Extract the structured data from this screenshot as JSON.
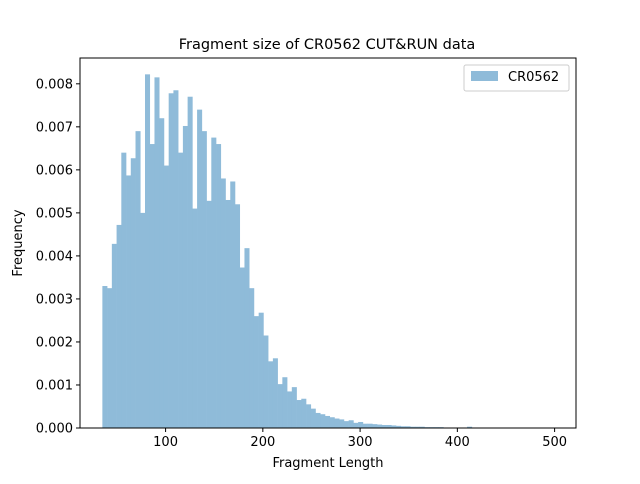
{
  "chart_data": {
    "type": "bar",
    "title": "Fragment size of CR0562 CUT&RUN data",
    "xlabel": "Fragment Length",
    "ylabel": "Frequency",
    "xlim": [
      12,
      522
    ],
    "ylim": [
      0,
      0.0086
    ],
    "xticks": [
      100,
      200,
      300,
      400,
      500
    ],
    "xtick_labels": [
      "100",
      "200",
      "300",
      "400",
      "500"
    ],
    "yticks": [
      0,
      0.001,
      0.002,
      0.003,
      0.004,
      0.005,
      0.006,
      0.007,
      0.008
    ],
    "ytick_labels": [
      "0.000",
      "0.001",
      "0.002",
      "0.003",
      "0.004",
      "0.005",
      "0.006",
      "0.007",
      "0.008"
    ],
    "grid": false,
    "legend": {
      "position": "top-right",
      "entries": [
        "CR0562"
      ]
    },
    "series": [
      {
        "name": "CR0562",
        "color": "#8fbbd9",
        "bin_start": 35,
        "bin_width": 4.87,
        "values": [
          0.0033,
          0.00325,
          0.00428,
          0.00472,
          0.0064,
          0.00587,
          0.00627,
          0.0069,
          0.005,
          0.00822,
          0.0066,
          0.00815,
          0.0072,
          0.0061,
          0.00778,
          0.00785,
          0.0064,
          0.00702,
          0.0077,
          0.0051,
          0.0074,
          0.0069,
          0.00528,
          0.00675,
          0.0066,
          0.0058,
          0.0053,
          0.00573,
          0.0052,
          0.00373,
          0.00418,
          0.00325,
          0.0026,
          0.00268,
          0.00215,
          0.00155,
          0.00162,
          0.00102,
          0.00118,
          0.00085,
          0.00095,
          0.00065,
          0.00068,
          0.00055,
          0.00045,
          0.00035,
          0.00032,
          0.00028,
          0.00025,
          0.00022,
          0.0002,
          0.00016,
          0.00018,
          0.00012,
          0.00014,
          0.0001,
          0.0001,
          9e-05,
          8e-05,
          7e-05,
          7e-05,
          6e-05,
          5e-05,
          4e-05,
          4e-05,
          3e-05,
          3e-05,
          3e-05,
          2e-05,
          2e-05,
          2e-05,
          2e-05,
          1e-05,
          1e-05,
          1e-05,
          1e-05,
          1e-05,
          3e-05,
          1e-05,
          1e-05,
          1e-05,
          1e-05,
          1e-05,
          1e-05,
          1e-05,
          1e-05,
          0,
          0,
          0,
          0,
          0,
          0,
          0,
          0,
          0,
          0,
          0,
          0,
          0,
          0
        ]
      }
    ]
  }
}
